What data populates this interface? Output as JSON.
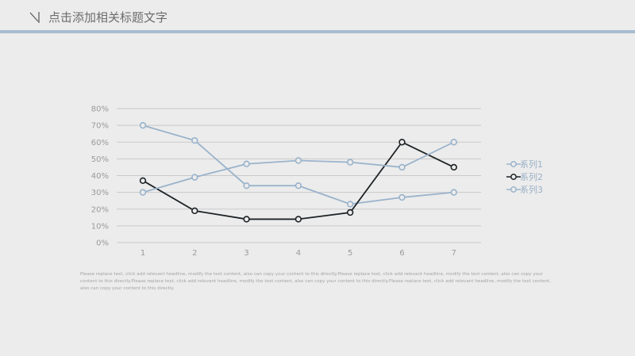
{
  "header": {
    "title": "点击添加相关标题文字"
  },
  "colors": {
    "background": "#ececec",
    "accent": "#a7bccf",
    "series_light": "#9ab3cb",
    "series_dark": "#1e2326",
    "gridline": "#c9c9c9",
    "axis_text": "#9a9a9a"
  },
  "chart_data": {
    "type": "line",
    "title": "",
    "x": [
      "1",
      "2",
      "3",
      "4",
      "5",
      "6",
      "7"
    ],
    "yticks": [
      "0%",
      "10%",
      "20%",
      "30%",
      "40%",
      "50%",
      "60%",
      "70%",
      "80%"
    ],
    "ylim": [
      0,
      80
    ],
    "grid": true,
    "legend_position": "right",
    "series": [
      {
        "name": "系列1",
        "values": [
          70,
          61,
          34,
          34,
          23,
          27,
          30
        ],
        "color": "#9ab3cb"
      },
      {
        "name": "系列2",
        "values": [
          37,
          19,
          14,
          14,
          18,
          60,
          45
        ],
        "color": "#1e2326"
      },
      {
        "name": "系列3",
        "values": [
          30,
          39,
          47,
          49,
          48,
          45,
          60
        ],
        "color": "#9ab3cb"
      }
    ]
  },
  "caption": "Please replace text, click add relevant headline, modify the text content, also can copy your content to this directly.Please replace text, click add relevant headline, modify the text content, also can copy your content to this directly.Please replace text, click add relevant headline, modify the text content, also can copy your content to this directly.Please replace text, click add relevant headline, modify the text content, also can copy your content to this directly."
}
